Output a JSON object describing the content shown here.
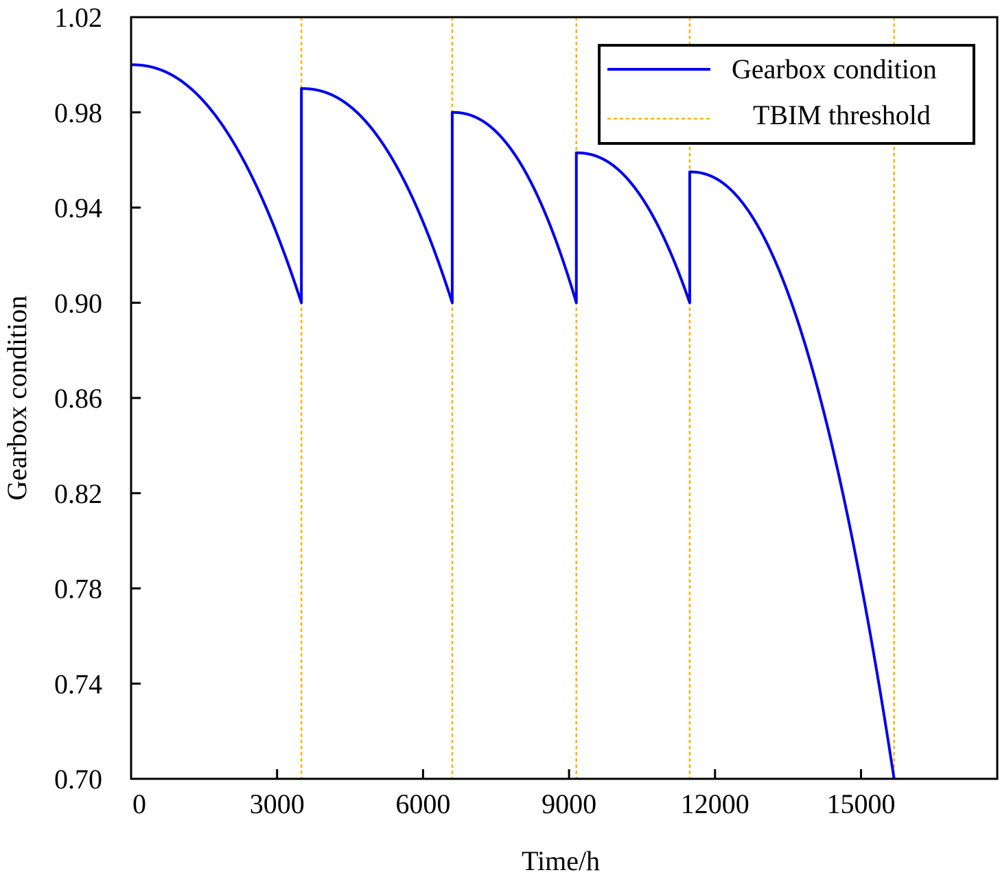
{
  "chart_data": {
    "type": "line",
    "title": "",
    "xlabel": "Time/h",
    "ylabel": "Gearbox condition",
    "xlim": [
      0,
      17800
    ],
    "ylim": [
      0.7,
      1.02
    ],
    "x_ticks": [
      0,
      3000,
      6000,
      9000,
      12000,
      15000
    ],
    "x_tick_labels": [
      "0",
      "3000",
      "6000",
      "9000",
      "12000",
      "15000"
    ],
    "y_ticks": [
      0.7,
      0.74,
      0.78,
      0.82,
      0.86,
      0.9,
      0.94,
      0.98,
      1.02
    ],
    "y_tick_labels": [
      "0.70",
      "0.74",
      "0.78",
      "0.82",
      "0.86",
      "0.90",
      "0.94",
      "0.98",
      "1.02"
    ],
    "grid": false,
    "legend_position": "top-right",
    "colors": {
      "condition": "#0000ee",
      "threshold": "#ffb300"
    },
    "series": [
      {
        "name": "Gearbox condition",
        "style": "solid",
        "segments": [
          {
            "start_time": 0,
            "end_time": 3500,
            "start_value": 1.0,
            "end_value": 0.9
          },
          {
            "start_time": 3500,
            "end_time": 6600,
            "start_value": 0.99,
            "end_value": 0.9
          },
          {
            "start_time": 6600,
            "end_time": 9150,
            "start_value": 0.98,
            "end_value": 0.9
          },
          {
            "start_time": 9150,
            "end_time": 11480,
            "start_value": 0.963,
            "end_value": 0.9
          },
          {
            "start_time": 11480,
            "end_time": 15680,
            "start_value": 0.955,
            "end_value": 0.7
          }
        ]
      },
      {
        "name": "TBIM threshold",
        "style": "dotted",
        "vertical_lines_at": [
          3500,
          6600,
          9150,
          11480,
          15680
        ]
      }
    ]
  }
}
